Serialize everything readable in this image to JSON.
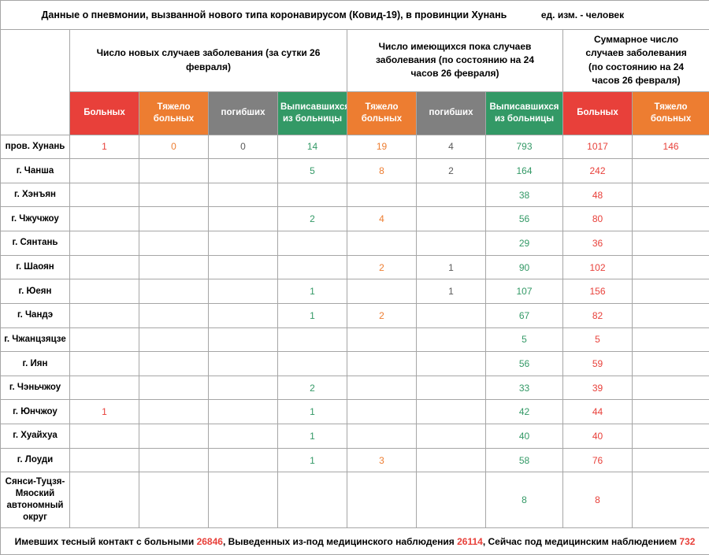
{
  "title": "Данные о пневмонии, вызванной нового типа коронавирусом (Ковид-19), в провинции Хунань",
  "unit_label": "ед. изм. - человек",
  "colors": {
    "red": "#e8403a",
    "orange": "#ed7d31",
    "gray": "#808080",
    "green": "#339966",
    "gray_text": "#595959",
    "border": "#a6a6a6"
  },
  "column_groups": [
    {
      "label": "Число новых случаев заболевания (за сутки 26 февраля)",
      "span": 4
    },
    {
      "label": "Число имеющихся пока случаев заболевания (по состоянию на 24 часов 26 февраля)",
      "span": 3
    },
    {
      "label": "Суммарное число случаев заболевания (по состоянию на 24 часов 26 февраля)",
      "span": 2
    }
  ],
  "columns": [
    {
      "label": "Больных",
      "header_color": "red",
      "value_color": "red"
    },
    {
      "label": "Тяжело больных",
      "header_color": "orange",
      "value_color": "orange"
    },
    {
      "label": "погибших",
      "header_color": "gray",
      "value_color": "gray_text"
    },
    {
      "label": "Выписавшихся из больницы",
      "header_color": "green",
      "value_color": "green"
    },
    {
      "label": "Тяжело больных",
      "header_color": "orange",
      "value_color": "orange"
    },
    {
      "label": "погибших",
      "header_color": "gray",
      "value_color": "gray_text"
    },
    {
      "label": "Выписавшихся из больницы",
      "header_color": "green",
      "value_color": "green"
    },
    {
      "label": "Больных",
      "header_color": "red",
      "value_color": "red"
    },
    {
      "label": "Тяжело больных",
      "header_color": "orange",
      "value_color": "red"
    }
  ],
  "rows": [
    {
      "region": "пров. Хунань",
      "values": [
        "1",
        "0",
        "0",
        "14",
        "19",
        "4",
        "793",
        "1017",
        "146"
      ]
    },
    {
      "region": "г. Чанша",
      "values": [
        "",
        "",
        "",
        "5",
        "8",
        "2",
        "164",
        "242",
        ""
      ]
    },
    {
      "region": "г. Хэнъян",
      "values": [
        "",
        "",
        "",
        "",
        "",
        "",
        "38",
        "48",
        ""
      ]
    },
    {
      "region": "г. Чжучжоу",
      "values": [
        "",
        "",
        "",
        "2",
        "4",
        "",
        "56",
        "80",
        ""
      ]
    },
    {
      "region": "г. Сянтань",
      "values": [
        "",
        "",
        "",
        "",
        "",
        "",
        "29",
        "36",
        ""
      ]
    },
    {
      "region": "г. Шаоян",
      "values": [
        "",
        "",
        "",
        "",
        "2",
        "1",
        "90",
        "102",
        ""
      ]
    },
    {
      "region": "г. Юеян",
      "values": [
        "",
        "",
        "",
        "1",
        "",
        "1",
        "107",
        "156",
        ""
      ]
    },
    {
      "region": "г. Чандэ",
      "values": [
        "",
        "",
        "",
        "1",
        "2",
        "",
        "67",
        "82",
        ""
      ]
    },
    {
      "region": "г. Чжанцзяцзе",
      "values": [
        "",
        "",
        "",
        "",
        "",
        "",
        "5",
        "5",
        ""
      ]
    },
    {
      "region": "г. Иян",
      "values": [
        "",
        "",
        "",
        "",
        "",
        "",
        "56",
        "59",
        ""
      ]
    },
    {
      "region": "г. Чэньчжоу",
      "values": [
        "",
        "",
        "",
        "2",
        "",
        "",
        "33",
        "39",
        ""
      ]
    },
    {
      "region": "г. Юнчжоу",
      "values": [
        "1",
        "",
        "",
        "1",
        "",
        "",
        "42",
        "44",
        ""
      ]
    },
    {
      "region": "г. Хуайхуа",
      "values": [
        "",
        "",
        "",
        "1",
        "",
        "",
        "40",
        "40",
        ""
      ]
    },
    {
      "region": "г. Лоуди",
      "values": [
        "",
        "",
        "",
        "1",
        "3",
        "",
        "58",
        "76",
        ""
      ]
    },
    {
      "region": "Сянси-Туцзя-Мяоский автономный округ",
      "values": [
        "",
        "",
        "",
        "",
        "",
        "",
        "8",
        "8",
        ""
      ]
    }
  ],
  "footer_segments": [
    {
      "text": "Имевших тесный контакт с больными ",
      "value": "26846"
    },
    {
      "text": ", Выведенных из-под медицинского наблюдения ",
      "value": "26114"
    },
    {
      "text": ", Сейчас под медицинским наблюдением ",
      "value": "732"
    }
  ]
}
